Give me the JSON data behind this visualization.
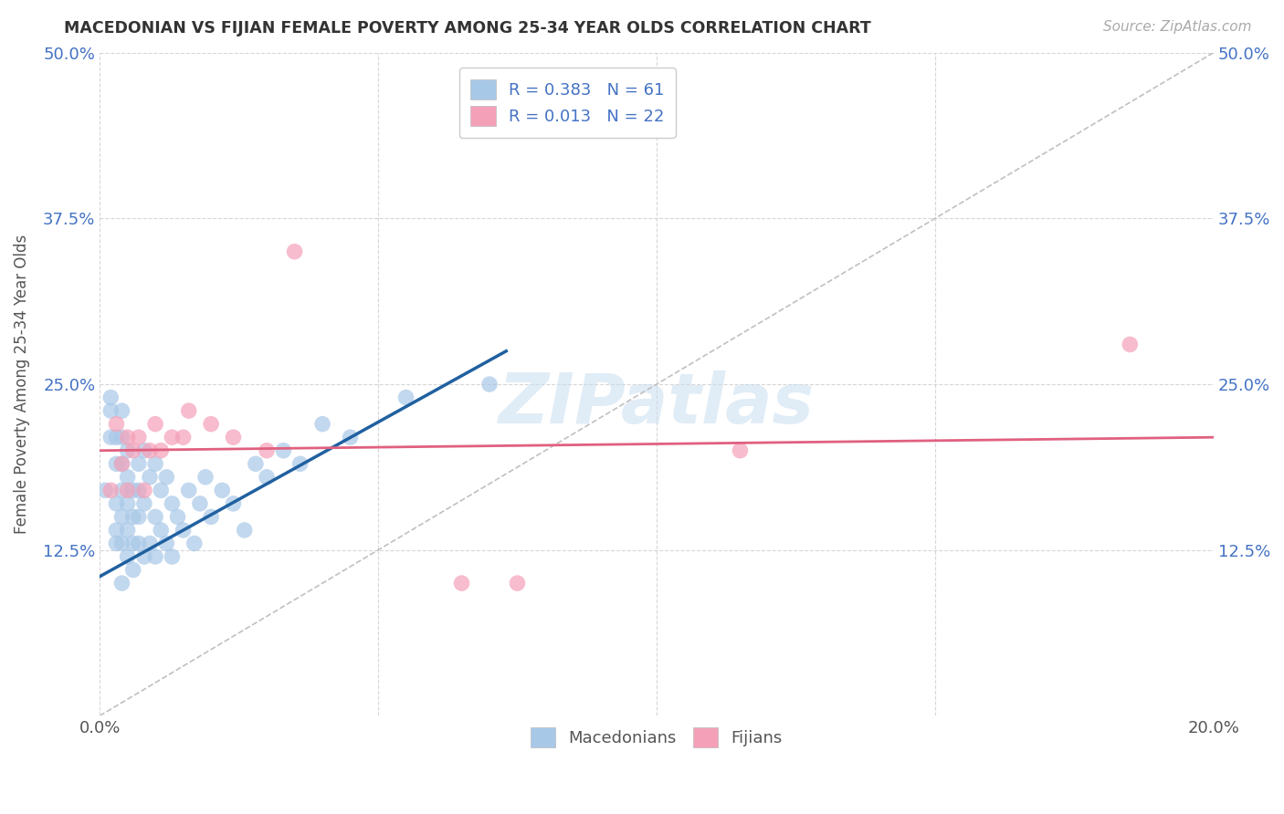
{
  "title": "MACEDONIAN VS FIJIAN FEMALE POVERTY AMONG 25-34 YEAR OLDS CORRELATION CHART",
  "source": "Source: ZipAtlas.com",
  "ylabel": "Female Poverty Among 25-34 Year Olds",
  "xlim": [
    0.0,
    0.2
  ],
  "ylim": [
    0.0,
    0.5
  ],
  "macedonian_R": 0.383,
  "macedonian_N": 61,
  "fijian_R": 0.013,
  "fijian_N": 22,
  "macedonian_color": "#a8c8e8",
  "fijian_color": "#f4a0b8",
  "macedonian_line_color": "#2060a0",
  "fijian_line_color": "#e06080",
  "diagonal_color": "#c0c0c0",
  "background_color": "#ffffff",
  "mac_line_x0": 0.0,
  "mac_line_y0": 0.105,
  "mac_line_x1": 0.073,
  "mac_line_y1": 0.275,
  "fij_line_x0": 0.0,
  "fij_line_y0": 0.2,
  "fij_line_x1": 0.2,
  "fij_line_y1": 0.21,
  "macedonian_x": [
    0.001,
    0.002,
    0.002,
    0.002,
    0.003,
    0.003,
    0.003,
    0.003,
    0.003,
    0.004,
    0.004,
    0.004,
    0.004,
    0.004,
    0.004,
    0.004,
    0.005,
    0.005,
    0.005,
    0.005,
    0.005,
    0.006,
    0.006,
    0.006,
    0.006,
    0.007,
    0.007,
    0.007,
    0.007,
    0.008,
    0.008,
    0.008,
    0.009,
    0.009,
    0.01,
    0.01,
    0.01,
    0.011,
    0.011,
    0.012,
    0.012,
    0.013,
    0.013,
    0.014,
    0.015,
    0.016,
    0.017,
    0.018,
    0.019,
    0.02,
    0.022,
    0.024,
    0.026,
    0.028,
    0.03,
    0.033,
    0.036,
    0.04,
    0.045,
    0.055,
    0.07
  ],
  "macedonian_y": [
    0.17,
    0.21,
    0.23,
    0.24,
    0.13,
    0.14,
    0.16,
    0.19,
    0.21,
    0.1,
    0.13,
    0.15,
    0.17,
    0.19,
    0.21,
    0.23,
    0.12,
    0.14,
    0.16,
    0.18,
    0.2,
    0.11,
    0.13,
    0.15,
    0.17,
    0.13,
    0.15,
    0.17,
    0.19,
    0.12,
    0.16,
    0.2,
    0.13,
    0.18,
    0.12,
    0.15,
    0.19,
    0.14,
    0.17,
    0.13,
    0.18,
    0.12,
    0.16,
    0.15,
    0.14,
    0.17,
    0.13,
    0.16,
    0.18,
    0.15,
    0.17,
    0.16,
    0.14,
    0.19,
    0.18,
    0.2,
    0.19,
    0.22,
    0.21,
    0.24,
    0.25
  ],
  "fijian_x": [
    0.002,
    0.003,
    0.004,
    0.005,
    0.005,
    0.006,
    0.007,
    0.008,
    0.009,
    0.01,
    0.011,
    0.013,
    0.015,
    0.016,
    0.02,
    0.024,
    0.03,
    0.035,
    0.065,
    0.075,
    0.115,
    0.185
  ],
  "fijian_y": [
    0.17,
    0.22,
    0.19,
    0.17,
    0.21,
    0.2,
    0.21,
    0.17,
    0.2,
    0.22,
    0.2,
    0.21,
    0.21,
    0.23,
    0.22,
    0.21,
    0.2,
    0.35,
    0.1,
    0.1,
    0.2,
    0.28
  ]
}
